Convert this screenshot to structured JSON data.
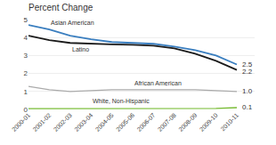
{
  "chart_data": {
    "type": "line",
    "title": "Percent Change",
    "categories": [
      "2000-01",
      "2001-02",
      "2002-03",
      "2003-04",
      "2004-05",
      "2005-06",
      "2006-07",
      "2007-08",
      "2008-09",
      "2009-10",
      "2010-11"
    ],
    "series": [
      {
        "name": "Asian American",
        "color": "#3a7ebf",
        "values": [
          4.7,
          4.45,
          4.1,
          3.9,
          3.75,
          3.7,
          3.65,
          3.5,
          3.3,
          3.0,
          2.5
        ],
        "value_labels": [
          null,
          null,
          null,
          null,
          null,
          null,
          null,
          null,
          null,
          null,
          "2.5"
        ]
      },
      {
        "name": "Latino",
        "color": "#1a1a1a",
        "values": [
          4.1,
          3.85,
          3.7,
          3.65,
          3.62,
          3.6,
          3.55,
          3.4,
          3.1,
          2.7,
          2.2
        ],
        "value_labels": [
          null,
          null,
          null,
          null,
          null,
          null,
          null,
          null,
          null,
          null,
          "2.2"
        ]
      },
      {
        "name": "African American",
        "color": "#aaaaaa",
        "values": [
          1.28,
          1.1,
          1.0,
          1.05,
          1.1,
          1.1,
          1.1,
          1.1,
          1.1,
          1.05,
          1.0
        ],
        "value_labels": [
          null,
          null,
          null,
          null,
          null,
          null,
          null,
          null,
          null,
          null,
          "1.0"
        ]
      },
      {
        "name": "White, Non-Hispanic",
        "color": "#77bb33",
        "values": [
          0.04,
          0.04,
          0.04,
          0.04,
          0.04,
          0.04,
          0.04,
          0.04,
          0.04,
          0.06,
          0.1
        ],
        "value_labels": [
          null,
          null,
          null,
          null,
          null,
          null,
          null,
          null,
          null,
          null,
          "0.1"
        ]
      }
    ],
    "annotations": [
      {
        "text": "Asian American",
        "x": "2001-02"
      },
      {
        "text": "Latino",
        "x": "2002-03"
      },
      {
        "text": "African American",
        "x": "2005-06"
      },
      {
        "text": "White, Non-Hispanic",
        "x": "2003-04"
      }
    ],
    "ylim": [
      0,
      5
    ],
    "yticks": [
      0,
      1,
      2,
      3,
      4,
      5
    ],
    "grid": true,
    "data_labels": true
  }
}
